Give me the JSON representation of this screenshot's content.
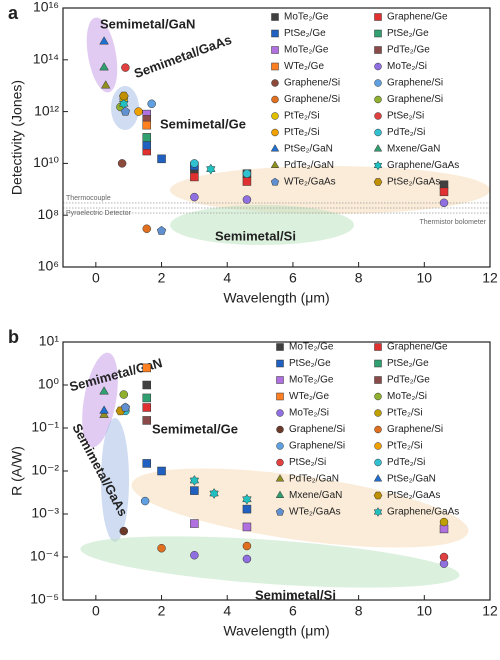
{
  "chart_data": [
    {
      "type": "scatter",
      "panel": "a",
      "x_label": "Wavelength (μm)",
      "y_label": "Detectivity (Jones)",
      "log_y": true,
      "xlim": [
        -1,
        12
      ],
      "xticks": [
        0,
        2,
        4,
        6,
        8,
        10,
        12
      ],
      "ylim": [
        1000000,
        10000000000000000
      ],
      "yticks": [
        {
          "value": 1000000,
          "label": "10⁶"
        },
        {
          "value": 100000000,
          "label": "10⁸"
        },
        {
          "value": 10000000000,
          "label": "10¹⁰"
        },
        {
          "value": 1000000000000,
          "label": "10¹²"
        },
        {
          "value": 100000000000000,
          "label": "10¹⁴"
        },
        {
          "value": 10000000000000000,
          "label": "10¹⁶"
        }
      ],
      "annotations": [
        "Semimetal/GaN",
        "Semimetal/GaAs",
        "Semimetal/Ge",
        "Semimetal/Si",
        "Thermocouple",
        "Pyroelectric Detector",
        "Thermistor bolometer"
      ],
      "series": [
        {
          "name": "MoTe₂/Ge",
          "color": "#404040",
          "marker": "square",
          "x": [
            1.55,
            3,
            4.6,
            10.6
          ],
          "values": [
            100000000000,
            6000000000,
            4000000000,
            1500000000
          ]
        },
        {
          "name": "Graphene/Ge",
          "color": "#e03030",
          "marker": "square",
          "x": [
            1.55,
            3,
            4.6,
            10.6
          ],
          "values": [
            30000000000,
            3000000000,
            2000000000,
            800000000
          ]
        },
        {
          "name": "PtSe₂/Ge",
          "color": "#2060c0",
          "marker": "square",
          "x": [
            1.55,
            2,
            3
          ],
          "values": [
            50000000000,
            15000000000,
            8000000000
          ]
        },
        {
          "name": "PtSe₂/Ge",
          "color": "#30a070",
          "marker": "square",
          "x": [
            1.55
          ],
          "values": [
            100000000000
          ]
        },
        {
          "name": "MoTe₂/Ge",
          "color": "#b070e0",
          "marker": "square",
          "x": [
            1.55
          ],
          "values": [
            800000000000
          ]
        },
        {
          "name": "PdTe₂/Ge",
          "color": "#8b4a4a",
          "marker": "square",
          "x": [
            1.55
          ],
          "values": [
            500000000000
          ]
        },
        {
          "name": "WTe₂/Ge",
          "color": "#ff8020",
          "marker": "square",
          "x": [
            1.55
          ],
          "values": [
            300000000000
          ]
        },
        {
          "name": "MoTe₂/Si",
          "color": "#9070e0",
          "marker": "circle",
          "x": [
            3,
            4.6,
            10.6
          ],
          "values": [
            500000000,
            400000000,
            300000000
          ]
        },
        {
          "name": "Graphene/Si",
          "color": "#8b4a3a",
          "marker": "circle",
          "x": [
            0.8
          ],
          "values": [
            10000000000
          ]
        },
        {
          "name": "Graphene/Si",
          "color": "#60a0e0",
          "marker": "circle",
          "x": [
            1.7
          ],
          "values": [
            2000000000000
          ]
        },
        {
          "name": "Graphene/Si",
          "color": "#e07020",
          "marker": "circle",
          "x": [
            1.55
          ],
          "values": [
            30000000
          ]
        },
        {
          "name": "Graphene/Si",
          "color": "#90b030",
          "marker": "circle",
          "x": [
            0.75
          ],
          "values": [
            1500000000000
          ]
        },
        {
          "name": "PtTe₂/Si",
          "color": "#e0c000",
          "marker": "circle",
          "x": [
            0.85
          ],
          "values": [
            3000000000000
          ]
        },
        {
          "name": "PtSe₂/Si",
          "color": "#e04040",
          "marker": "circle",
          "x": [
            0.9
          ],
          "values": [
            50000000000000
          ]
        },
        {
          "name": "PtTe₂/Si",
          "color": "#f0a000",
          "marker": "circle",
          "x": [
            1.3
          ],
          "values": [
            1000000000000
          ]
        },
        {
          "name": "PdTe₂/Si",
          "color": "#30c0d0",
          "marker": "circle",
          "x": [
            3,
            4.6
          ],
          "values": [
            10000000000,
            4000000000
          ]
        },
        {
          "name": "PtSe₂/GaN",
          "color": "#2070d0",
          "marker": "triangle",
          "x": [
            0.25
          ],
          "values": [
            500000000000000
          ]
        },
        {
          "name": "Mxene/GaN",
          "color": "#30a070",
          "marker": "triangle",
          "x": [
            0.25
          ],
          "values": [
            50000000000000
          ]
        },
        {
          "name": "PdTe₂/GaN",
          "color": "#909020",
          "marker": "triangle",
          "x": [
            0.3
          ],
          "values": [
            10000000000000
          ]
        },
        {
          "name": "Graphene/GaAs",
          "color": "#20c0c0",
          "marker": "star",
          "x": [
            0.85,
            3.5
          ],
          "values": [
            2000000000000,
            6000000000
          ]
        },
        {
          "name": "WTe₂/GaAs",
          "color": "#6090d0",
          "marker": "pentagon",
          "x": [
            0.9,
            2
          ],
          "values": [
            1000000000000,
            25000000
          ]
        },
        {
          "name": "PtSe₂/GaAs",
          "color": "#c09000",
          "marker": "hexagon",
          "x": [
            0.85
          ],
          "values": [
            4000000000000
          ]
        }
      ]
    },
    {
      "type": "scatter",
      "panel": "b",
      "x_label": "Wavelength (μm)",
      "y_label": "R (A/W)",
      "log_y": true,
      "xlim": [
        -1,
        12
      ],
      "xticks": [
        0,
        2,
        4,
        6,
        8,
        10,
        12
      ],
      "ylim": [
        1e-05,
        10
      ],
      "yticks": [
        {
          "value": 1e-05,
          "label": "10⁻⁵"
        },
        {
          "value": 0.0001,
          "label": "10⁻⁴"
        },
        {
          "value": 0.001,
          "label": "10⁻³"
        },
        {
          "value": 0.01,
          "label": "10⁻²"
        },
        {
          "value": 0.1,
          "label": "10⁻¹"
        },
        {
          "value": 1,
          "label": "10⁰"
        },
        {
          "value": 10,
          "label": "10¹"
        }
      ],
      "annotations": [
        "Semimetal/GaN",
        "Semimetal/GaAs",
        "Semimetal/Ge",
        "Semimetal/Si"
      ],
      "series": [
        {
          "name": "MoTe₂/Ge",
          "color": "#404040",
          "marker": "square",
          "x": [
            1.55
          ],
          "values": [
            1.0
          ]
        },
        {
          "name": "Graphene/Ge",
          "color": "#e03030",
          "marker": "square",
          "x": [
            1.55
          ],
          "values": [
            0.3
          ]
        },
        {
          "name": "PtSe₂/Ge",
          "color": "#2060c0",
          "marker": "square",
          "x": [
            1.55,
            2,
            3,
            4.6
          ],
          "values": [
            0.015,
            0.01,
            0.0035,
            0.0013
          ]
        },
        {
          "name": "PtSe₂/Ge",
          "color": "#30a070",
          "marker": "square",
          "x": [
            1.55
          ],
          "values": [
            0.5
          ]
        },
        {
          "name": "MoTe₂/Ge",
          "color": "#b070e0",
          "marker": "square",
          "x": [
            3,
            4.6,
            10.6
          ],
          "values": [
            0.0006,
            0.0005,
            0.00045
          ]
        },
        {
          "name": "PdTe₂/Ge",
          "color": "#8b4a4a",
          "marker": "square",
          "x": [
            1.55
          ],
          "values": [
            0.15
          ]
        },
        {
          "name": "WTe₂/Ge",
          "color": "#ff8020",
          "marker": "square",
          "x": [
            1.55
          ],
          "values": [
            2.5
          ]
        },
        {
          "name": "MoTe₂/Si",
          "color": "#90b030",
          "marker": "circle",
          "x": [
            0.85
          ],
          "values": [
            0.6
          ]
        },
        {
          "name": "MoTe₂/Si",
          "color": "#9070e0",
          "marker": "circle",
          "x": [
            3,
            4.6,
            10.6
          ],
          "values": [
            0.00011,
            9e-05,
            7e-05
          ]
        },
        {
          "name": "PtTe₂/Si",
          "color": "#c0a000",
          "marker": "circle",
          "x": [
            10.6
          ],
          "values": [
            0.00065
          ]
        },
        {
          "name": "Graphene/Si",
          "color": "#6b3a2a",
          "marker": "circle",
          "x": [
            0.85
          ],
          "values": [
            0.0004
          ]
        },
        {
          "name": "Graphene/Si",
          "color": "#e07020",
          "marker": "circle",
          "x": [
            2,
            4.6
          ],
          "values": [
            0.00016,
            0.00018
          ]
        },
        {
          "name": "Graphene/Si",
          "color": "#60a0e0",
          "marker": "circle",
          "x": [
            1.5
          ],
          "values": [
            0.002
          ]
        },
        {
          "name": "PtTe₂/Si",
          "color": "#f0a000",
          "marker": "circle",
          "x": [
            0.9
          ],
          "values": [
            0.3
          ]
        },
        {
          "name": "PtSe₂/Si",
          "color": "#e04040",
          "marker": "circle",
          "x": [
            10.6
          ],
          "values": [
            0.0001
          ]
        },
        {
          "name": "PdTe₂/Si",
          "color": "#30c0d0",
          "marker": "circle",
          "x": [
            0.9
          ],
          "values": [
            0.25
          ]
        },
        {
          "name": "PdTe₂/GaN",
          "color": "#909020",
          "marker": "triangle",
          "x": [
            0.25
          ],
          "values": [
            0.2
          ]
        },
        {
          "name": "PtSe₂/GaN",
          "color": "#2070d0",
          "marker": "triangle",
          "x": [
            0.25
          ],
          "values": [
            0.25
          ]
        },
        {
          "name": "Mxene/GaN",
          "color": "#30a070",
          "marker": "triangle",
          "x": [
            0.25
          ],
          "values": [
            0.7
          ]
        },
        {
          "name": "PtSe₂/GaAs",
          "color": "#c09000",
          "marker": "hexagon",
          "x": [
            0.75
          ],
          "values": [
            0.25
          ]
        },
        {
          "name": "WTe₂/GaAs",
          "color": "#6090d0",
          "marker": "pentagon",
          "x": [
            0.9
          ],
          "values": [
            0.3
          ]
        },
        {
          "name": "Graphene/GaAs",
          "color": "#20c0c0",
          "marker": "star",
          "x": [
            3,
            3.6,
            4.6
          ],
          "values": [
            0.006,
            0.003,
            0.0022
          ]
        }
      ]
    }
  ]
}
